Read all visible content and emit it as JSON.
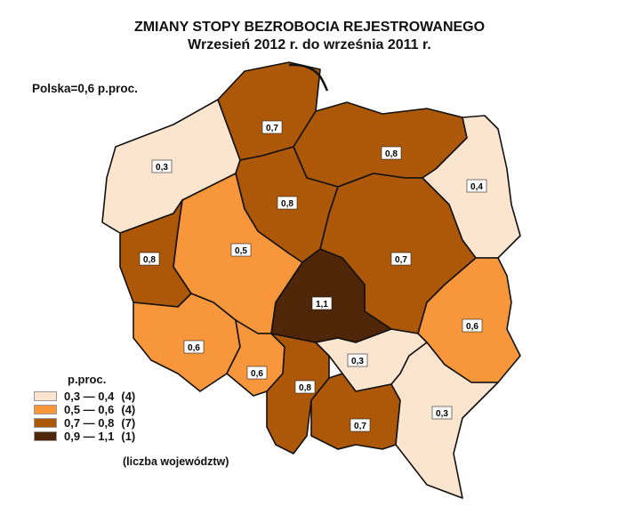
{
  "title": "ZMIANY STOPY BEZROBOCIA REJESTROWANEGO",
  "subtitle": "Wrzesień 2012 r. do września 2011 r.",
  "national_value": "Polska=0,6 p.proc.",
  "legend": {
    "title": "p.proc.",
    "classes": [
      {
        "range": "0,3 — 0,4",
        "count": "(4)",
        "color": "#fbe5cf"
      },
      {
        "range": "0,5 — 0,6",
        "count": "(4)",
        "color": "#f7963a"
      },
      {
        "range": "0,7 — 0,8",
        "count": "(7)",
        "color": "#ad5808"
      },
      {
        "range": "0,9 — 1,1",
        "count": "(1)",
        "color": "#4f2607"
      }
    ],
    "note": "(liczba województw)"
  },
  "regions": [
    {
      "value": "0,3",
      "class": 0
    },
    {
      "value": "0,7",
      "class": 2
    },
    {
      "value": "0,8",
      "class": 2
    },
    {
      "value": "0,4",
      "class": 0
    },
    {
      "value": "0,8",
      "class": 2
    },
    {
      "value": "0,7",
      "class": 2
    },
    {
      "value": "0,8",
      "class": 2
    },
    {
      "value": "0,5",
      "class": 1
    },
    {
      "value": "1,1",
      "class": 3
    },
    {
      "value": "0,6",
      "class": 1
    },
    {
      "value": "0,6",
      "class": 1
    },
    {
      "value": "0,6",
      "class": 1
    },
    {
      "value": "0,8",
      "class": 2
    },
    {
      "value": "0,3",
      "class": 0
    },
    {
      "value": "0,7",
      "class": 2
    },
    {
      "value": "0,3",
      "class": 0
    }
  ]
}
